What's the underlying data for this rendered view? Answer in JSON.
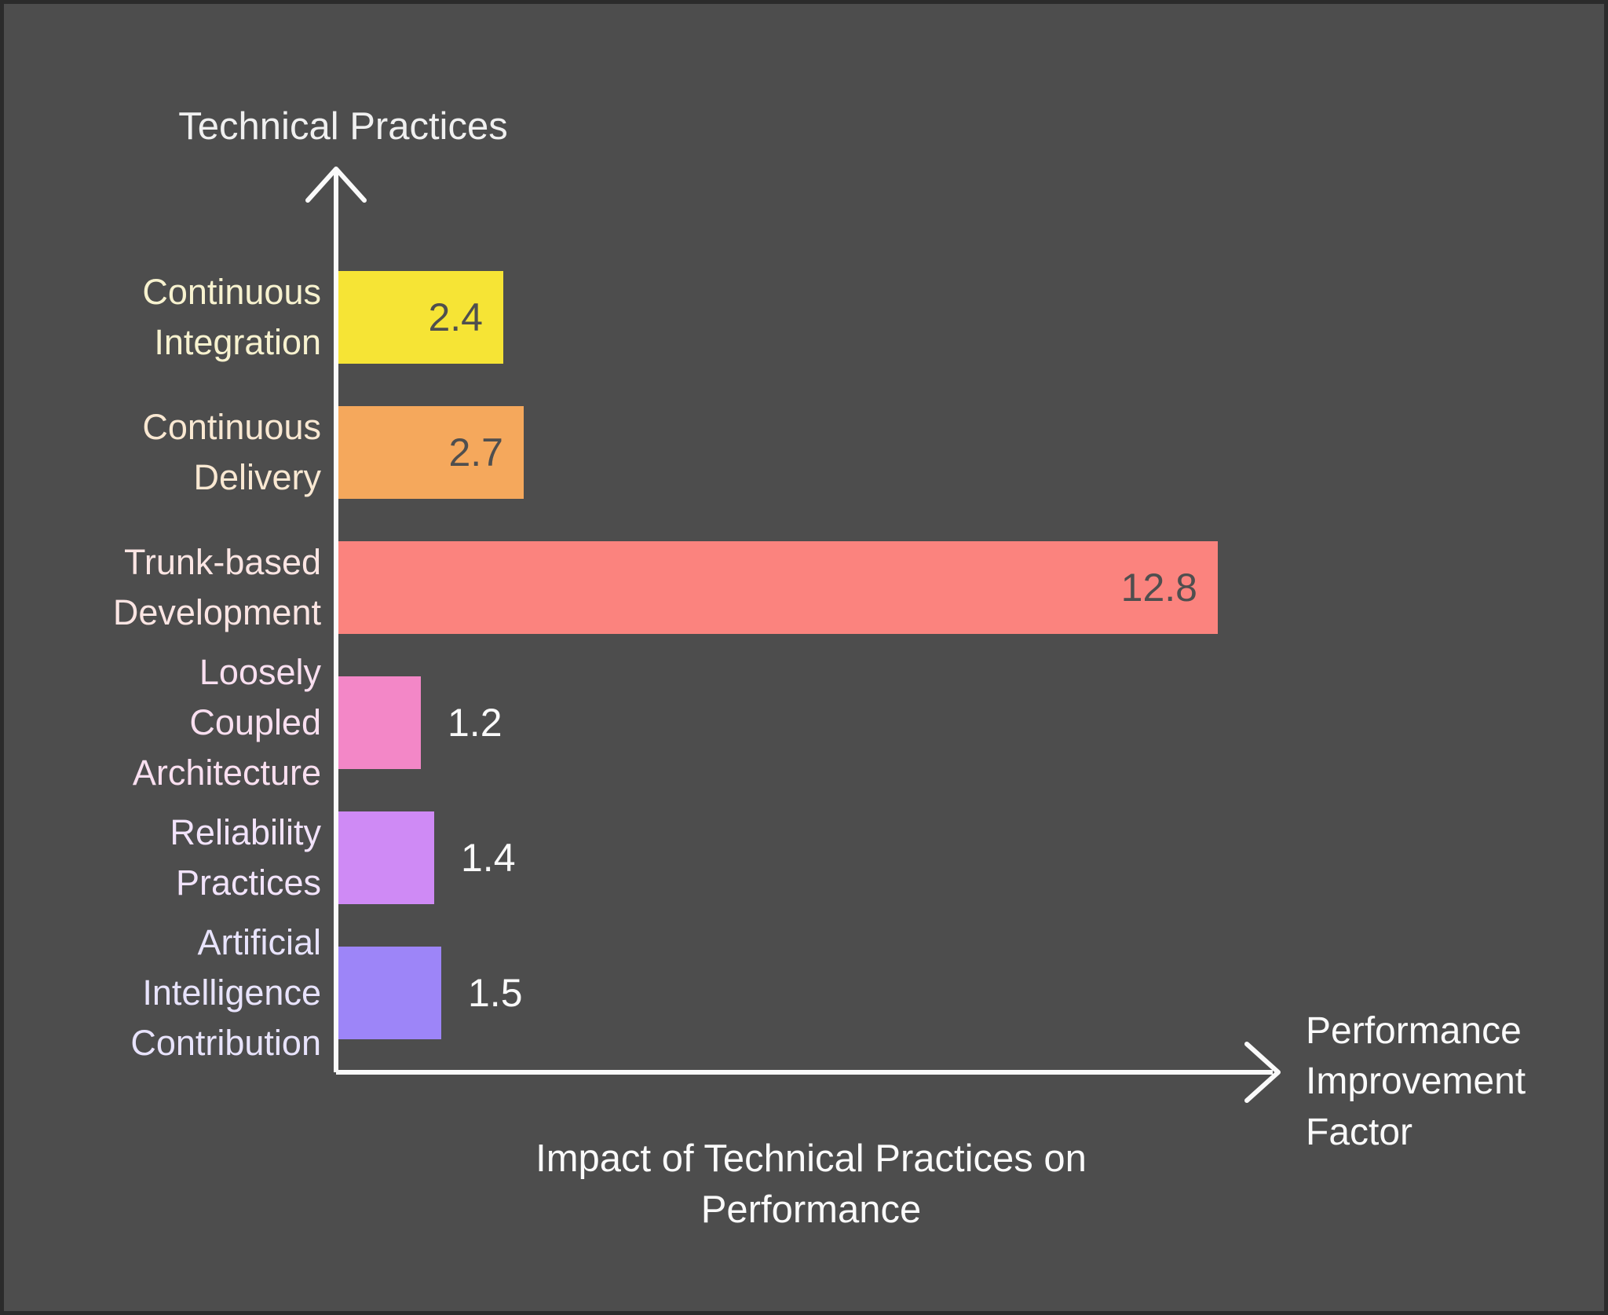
{
  "chart_data": {
    "type": "bar",
    "orientation": "horizontal",
    "title": "Impact of Technical Practices on Performance",
    "x_axis_label": "Performance Improvement Factor",
    "y_axis_label": "Technical Practices",
    "categories": [
      "Continuous Integration",
      "Continuous Delivery",
      "Trunk-based Development",
      "Loosely Coupled Architecture",
      "Reliability Practices",
      "Artificial Intelligence Contribution"
    ],
    "values": [
      2.4,
      2.7,
      12.8,
      1.2,
      1.4,
      1.5
    ],
    "value_labels": [
      "2.4",
      "2.7",
      "12.8",
      "1.2",
      "1.4",
      "1.5"
    ],
    "bar_colors": [
      "#f6e435",
      "#f5a85c",
      "#fb837e",
      "#f387c7",
      "#cf8af5",
      "#9d85f8"
    ],
    "category_label_colors": [
      "#f7f2cf",
      "#f9e8d2",
      "#fbe5e3",
      "#f9dff0",
      "#f2e3fb",
      "#e8e3fc"
    ],
    "value_inside": [
      true,
      true,
      true,
      false,
      false,
      false
    ],
    "value_color_inside": "#4f4f4f",
    "value_color_outside": "#fafafa",
    "xlim": [
      0,
      13.7
    ],
    "grid": "off",
    "legend": "none",
    "background_color": "#4d4d4d",
    "axis_color": "#fafafa"
  }
}
